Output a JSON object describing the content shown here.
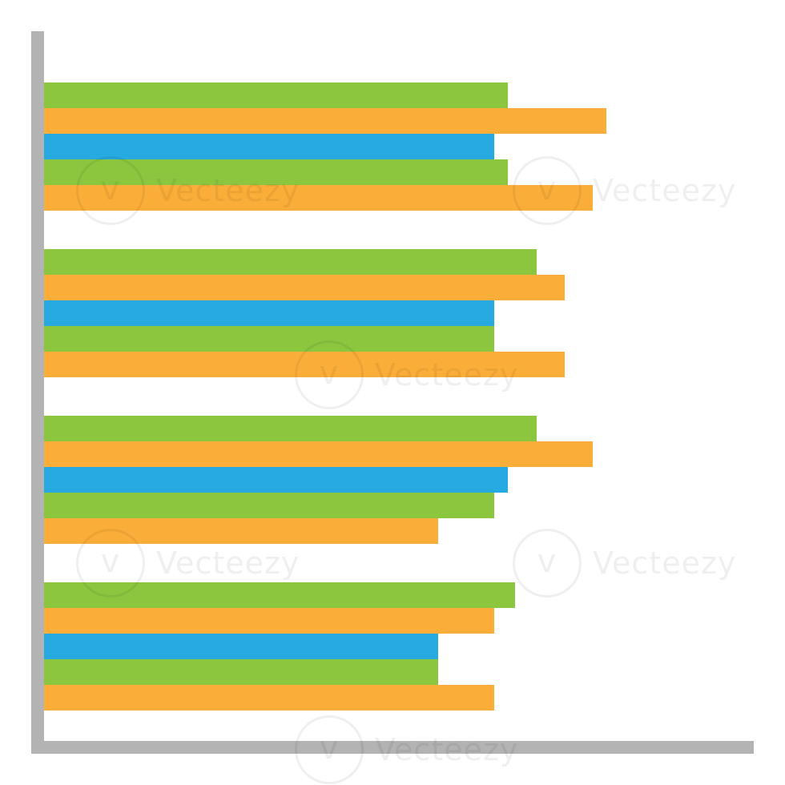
{
  "colors": {
    "green": "#8cc63f",
    "orange": "#fbad39",
    "blue": "#27a9e1",
    "axis": "#b3b3b3"
  },
  "watermark_text": "Vecteezy",
  "chart_data": {
    "type": "bar",
    "orientation": "horizontal",
    "title": "",
    "xlabel": "",
    "ylabel": "",
    "xlim": [
      0,
      100
    ],
    "grid": false,
    "legend": "none",
    "groups": [
      {
        "bars": [
          {
            "color": "green",
            "value": 66
          },
          {
            "color": "orange",
            "value": 80
          },
          {
            "color": "blue",
            "value": 64
          },
          {
            "color": "green",
            "value": 66
          },
          {
            "color": "orange",
            "value": 78
          }
        ]
      },
      {
        "bars": [
          {
            "color": "green",
            "value": 70
          },
          {
            "color": "orange",
            "value": 74
          },
          {
            "color": "blue",
            "value": 64
          },
          {
            "color": "green",
            "value": 64
          },
          {
            "color": "orange",
            "value": 74
          }
        ]
      },
      {
        "bars": [
          {
            "color": "green",
            "value": 70
          },
          {
            "color": "orange",
            "value": 78
          },
          {
            "color": "blue",
            "value": 66
          },
          {
            "color": "green",
            "value": 64
          },
          {
            "color": "orange",
            "value": 56
          }
        ]
      },
      {
        "bars": [
          {
            "color": "green",
            "value": 67
          },
          {
            "color": "orange",
            "value": 64
          },
          {
            "color": "blue",
            "value": 56
          },
          {
            "color": "green",
            "value": 56
          },
          {
            "color": "orange",
            "value": 64
          }
        ]
      }
    ]
  }
}
